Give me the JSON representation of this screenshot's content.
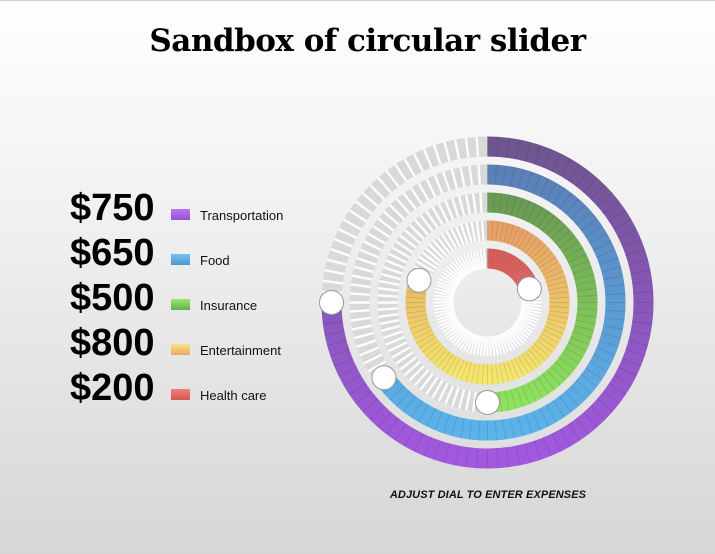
{
  "title": "Sandbox of circular slider",
  "caption": "ADJUST DIAL TO ENTER EXPENSES",
  "expenses": [
    {
      "amount": "$750",
      "label": "Transportation",
      "value": 750,
      "max": 1000,
      "color": "#a259e0",
      "color_top": "#6e5590"
    },
    {
      "amount": "$650",
      "label": "Food",
      "value": 650,
      "max": 1000,
      "color": "#5bb3ea",
      "color_top": "#5b80b8"
    },
    {
      "amount": "$500",
      "label": "Insurance",
      "value": 500,
      "max": 1000,
      "color": "#8ee25e",
      "color_top": "#6a9b55"
    },
    {
      "amount": "$800",
      "label": "Entertainment",
      "value": 800,
      "max": 1000,
      "color": "#f3e56e",
      "color_top": "#e5a166"
    },
    {
      "amount": "$200",
      "label": "Health care",
      "value": 200,
      "max": 1000,
      "color": "#e36c6c",
      "color_top": "#d9615b"
    }
  ]
}
